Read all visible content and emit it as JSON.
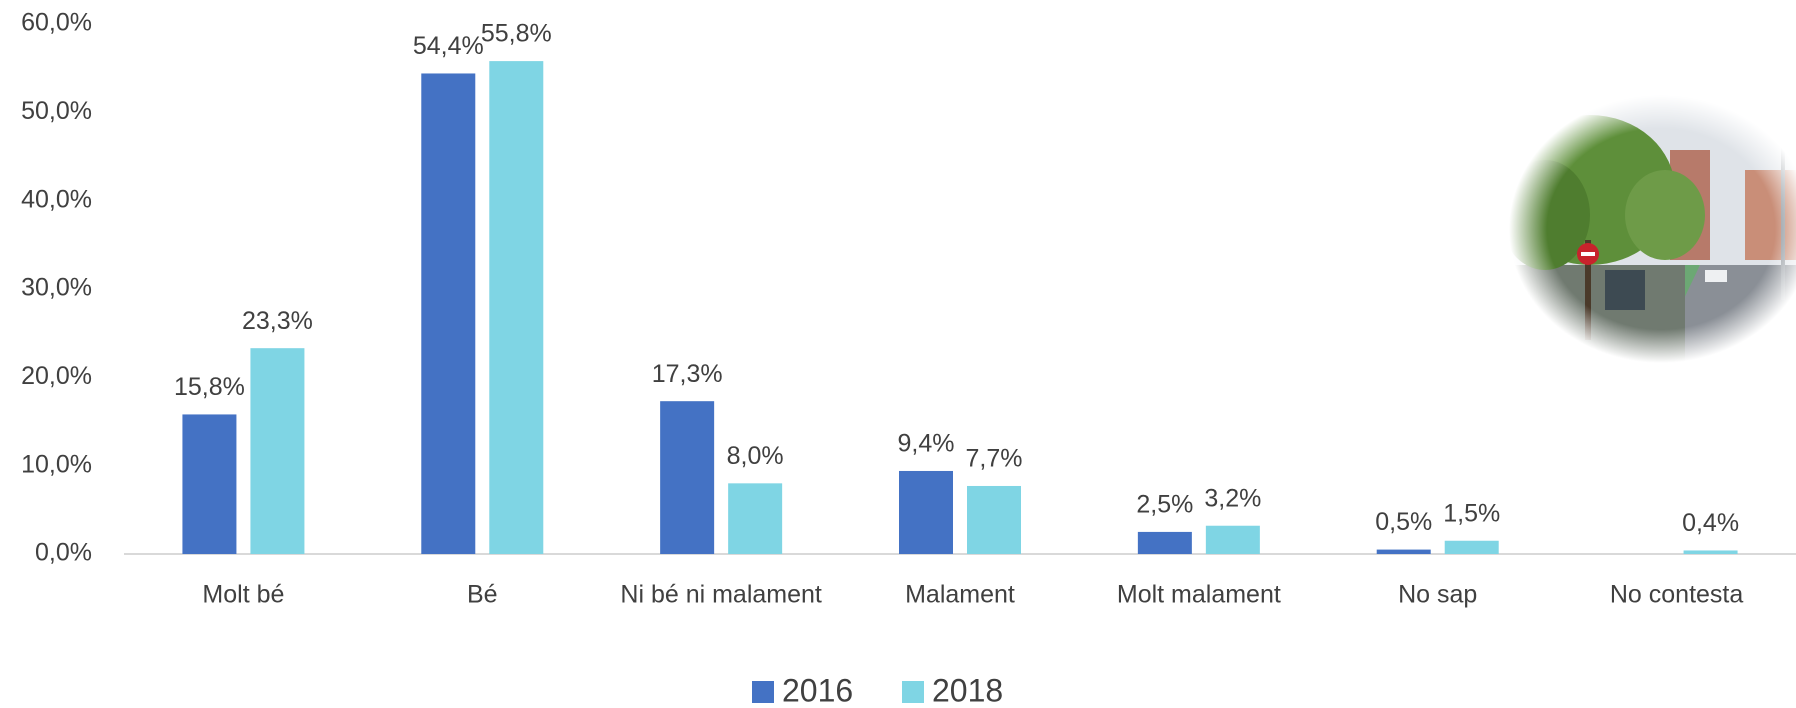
{
  "chart_data": {
    "type": "bar",
    "categories": [
      "Molt bé",
      "Bé",
      "Ni bé ni malament",
      "Malament",
      "Molt malament",
      "No sap",
      "No contesta"
    ],
    "series": [
      {
        "name": "2016",
        "color": "#4472c4",
        "values": [
          15.8,
          54.4,
          17.3,
          9.4,
          2.5,
          0.5,
          null
        ],
        "value_labels": [
          "15,8%",
          "54,4%",
          "17,3%",
          "9,4%",
          "2,5%",
          "0,5%",
          null
        ]
      },
      {
        "name": "2018",
        "color": "#7fd5e4",
        "values": [
          23.3,
          55.8,
          8.0,
          7.7,
          3.2,
          1.5,
          0.4
        ],
        "value_labels": [
          "23,3%",
          "55,8%",
          "8,0%",
          "7,7%",
          "3,2%",
          "1,5%",
          "0,4%"
        ]
      }
    ],
    "ylim": [
      0,
      60
    ],
    "yticks": [
      {
        "value": 0,
        "label": "0,0%"
      },
      {
        "value": 10,
        "label": "10,0%"
      },
      {
        "value": 20,
        "label": "20,0%"
      },
      {
        "value": 30,
        "label": "30,0%"
      },
      {
        "value": 40,
        "label": "40,0%"
      },
      {
        "value": 50,
        "label": "50,0%"
      },
      {
        "value": 60,
        "label": "60,0%"
      }
    ],
    "grid": false,
    "legend": "bottom"
  }
}
